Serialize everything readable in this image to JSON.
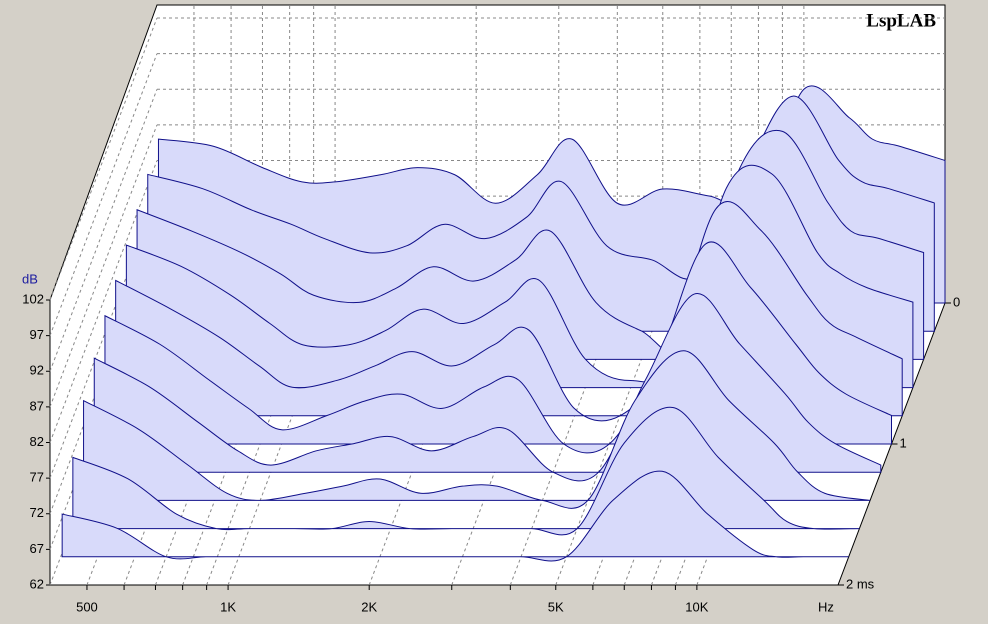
{
  "chart_data": {
    "type": "waterfall",
    "title": "LspLAB",
    "y_label": "dB",
    "x_label": "Hz",
    "xlog": true,
    "xlim": [
      417,
      20000
    ],
    "xticks": [
      500,
      {
        "value": 1000,
        "label": "1K"
      },
      {
        "value": 2000,
        "label": "2K"
      },
      {
        "value": 5000,
        "label": "5K"
      },
      {
        "value": 10000,
        "label": "10K"
      }
    ],
    "xminor": [
      600,
      700,
      800,
      900,
      3000,
      4000,
      6000,
      7000,
      8000,
      9000
    ],
    "ylim": [
      62,
      102
    ],
    "yticks": [
      62,
      67,
      72,
      77,
      82,
      87,
      92,
      97,
      102
    ],
    "tlim": [
      0,
      2
    ],
    "tticks": [
      0,
      1,
      {
        "value": 2,
        "label": "2 ms"
      }
    ],
    "grid": true,
    "color": "#d8dafa",
    "line_color": "#10108a",
    "frequencies": [
      420,
      550,
      700,
      850,
      1000,
      1250,
      1500,
      1800,
      2200,
      2700,
      3200,
      4000,
      5000,
      6300,
      8000,
      10000,
      12500,
      14000,
      16000,
      20000
    ],
    "slices": [
      {
        "t": 0,
        "values": [
          85,
          84,
          81,
          79,
          79,
          80,
          81,
          80,
          76,
          80,
          85,
          76,
          78,
          77,
          76,
          92,
          88,
          85,
          84,
          82
        ]
      },
      {
        "t": 0.2,
        "values": [
          84,
          82,
          79,
          77,
          75,
          73,
          74,
          77,
          75,
          78,
          83,
          74,
          72,
          70,
          85,
          95,
          86,
          83,
          82,
          80
        ]
      },
      {
        "t": 0.4,
        "values": [
          83,
          80,
          77,
          74,
          71,
          70,
          72,
          75,
          73,
          76,
          80,
          70,
          66,
          64,
          88,
          94,
          84,
          80,
          79,
          77
        ]
      },
      {
        "t": 0.6,
        "values": [
          82,
          79,
          75,
          71,
          68,
          68,
          70,
          73,
          71,
          74,
          77,
          66,
          63,
          66,
          90,
          92,
          81,
          78,
          76,
          74
        ]
      },
      {
        "t": 0.8,
        "values": [
          81,
          77,
          73,
          69,
          66,
          67,
          69,
          71,
          69,
          72,
          74,
          63,
          62,
          70,
          91,
          88,
          79,
          75,
          73,
          70
        ]
      },
      {
        "t": 1.0,
        "values": [
          80,
          76,
          71,
          67,
          64,
          66,
          68,
          69,
          67,
          70,
          71,
          62,
          62,
          73,
          90,
          84,
          76,
          72,
          69,
          66
        ]
      },
      {
        "t": 1.2,
        "values": [
          78,
          74,
          69,
          65,
          63,
          65,
          66,
          67,
          65,
          67,
          68,
          62,
          62,
          75,
          87,
          80,
          73,
          69,
          66,
          63
        ]
      },
      {
        "t": 1.4,
        "values": [
          76,
          72,
          67,
          63,
          62,
          63,
          64,
          65,
          63,
          64,
          64,
          62,
          62,
          76,
          83,
          76,
          70,
          66,
          63,
          62
        ]
      },
      {
        "t": 1.6,
        "values": [
          72,
          69,
          64,
          62,
          62,
          62,
          62,
          63,
          62,
          62,
          62,
          62,
          62,
          74,
          79,
          72,
          66,
          63,
          62,
          62
        ]
      },
      {
        "t": 1.8,
        "values": [
          68,
          66,
          62,
          62,
          62,
          62,
          62,
          62,
          62,
          62,
          62,
          62,
          62,
          70,
          74,
          68,
          63,
          62,
          62,
          62
        ]
      }
    ]
  }
}
